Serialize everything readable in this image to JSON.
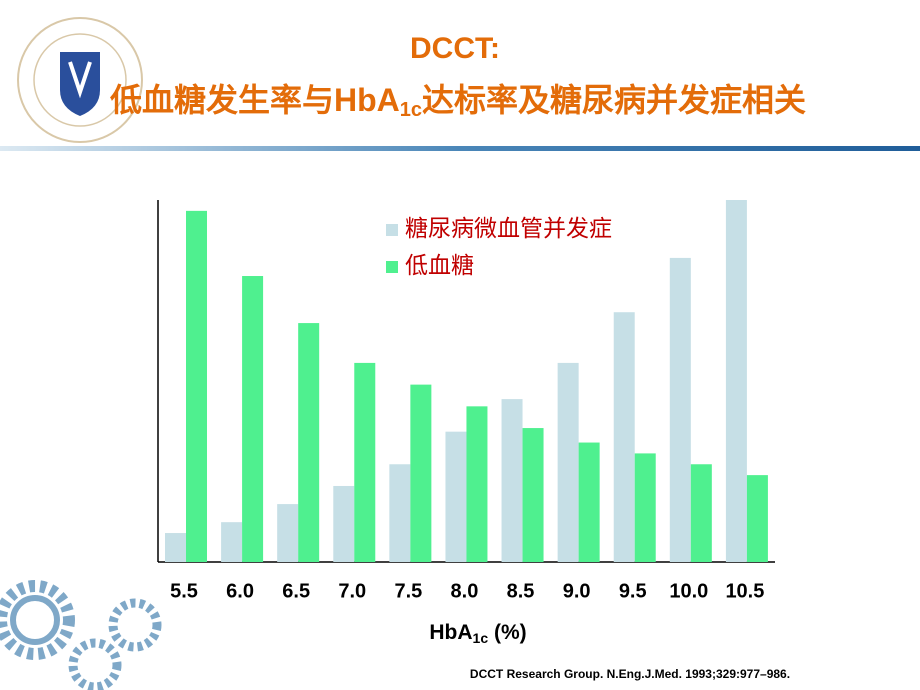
{
  "chart_data": {
    "type": "bar",
    "title": "DCCT:",
    "subtitle_parts": [
      "低血糖发生率与HbA",
      "1c",
      "达标率及糖尿病并发症相关"
    ],
    "categories": [
      "5.5",
      "6.0",
      "6.5",
      "7.0",
      "7.5",
      "8.0",
      "8.5",
      "9.0",
      "9.5",
      "10.0",
      "10.5"
    ],
    "series": [
      {
        "name": "糖尿病微血管并发症",
        "color": "#c6dfe6",
        "values": [
          8,
          11,
          16,
          21,
          27,
          36,
          45,
          55,
          69,
          84,
          100
        ]
      },
      {
        "name": "低血糖",
        "color": "#4ff08f",
        "values": [
          97,
          79,
          66,
          55,
          49,
          43,
          37,
          33,
          30,
          27,
          24
        ]
      }
    ],
    "ylim": [
      0,
      100
    ],
    "x_label_parts": [
      "HbA",
      "1c",
      " (%)"
    ],
    "source": "DCCT Research Group.  N.Eng.J.Med.  1993;329:977–986."
  }
}
